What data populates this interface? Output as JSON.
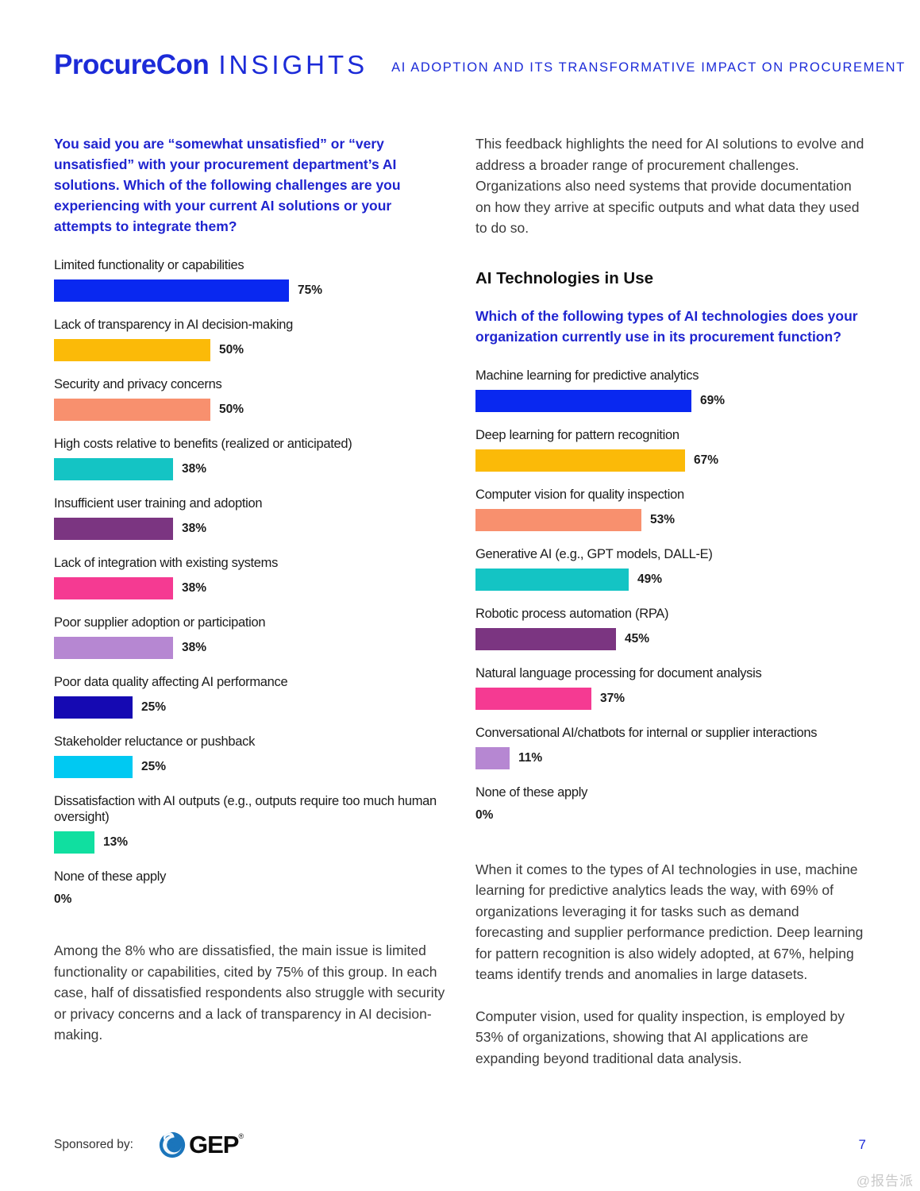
{
  "header": {
    "brand_name": "ProcureCon",
    "brand_insights": "INSIGHTS",
    "subtitle": "AI ADOPTION AND ITS TRANSFORMATIVE IMPACT ON PROCUREMENT"
  },
  "colors": {
    "accent_blue": "#1c2bd8",
    "question_blue": "#1f24cf",
    "body_text": "#3a3a3a",
    "chart_label": "#1c1c1c",
    "watermark_gray": "#c9c9c9"
  },
  "left_column": {
    "closing_paragraph": "Among the 8% who are dissatisfied, the main issue is limited functionality or capabilities, cited by 75% of this group. In each case, half of dissatisfied respondents also struggle with security or privacy concerns and a lack of transparency in AI decision-making."
  },
  "right_column": {
    "intro_paragraph": "This feedback highlights the need for AI solutions to evolve and address a broader range of procurement challenges. Organizations also need systems that provide documentation on how they arrive at specific outputs and what data they used to do so.",
    "section_title": "AI Technologies in Use",
    "closing_paragraph_1": "When it comes to the types of AI technologies in use, machine learning for predictive analytics leads the way, with 69% of organizations leveraging it for tasks such as demand forecasting and supplier performance prediction. Deep learning for pattern recognition is also widely adopted, at 67%, helping teams identify trends and anomalies in large datasets.",
    "closing_paragraph_2": "Computer vision, used for quality inspection, is employed by 53% of organizations, showing that AI applications are expanding beyond traditional data analysis."
  },
  "chart_data": [
    {
      "type": "bar",
      "orientation": "horizontal",
      "title": "You said you are “somewhat unsatisfied” or “very unsatisfied” with your procurement department’s AI solutions. Which of the following challenges are you experiencing with your current AI solutions or your attempts to integrate them?",
      "categories": [
        "Limited functionality or capabilities",
        "Lack of transparency in AI decision-making",
        "Security and privacy concerns",
        "High costs relative to benefits (realized or anticipated)",
        "Insufficient user training and adoption",
        "Lack of integration with existing systems",
        "Poor supplier adoption or participation",
        "Poor data quality affecting AI performance",
        "Stakeholder reluctance or pushback",
        "Dissatisfaction with AI outputs (e.g., outputs require too much human oversight)",
        "None of these apply"
      ],
      "values": [
        75,
        50,
        50,
        38,
        38,
        38,
        38,
        25,
        25,
        13,
        0
      ],
      "value_suffix": "%",
      "bar_colors": [
        "#0928f0",
        "#fbba08",
        "#f8906e",
        "#14c4c4",
        "#7b3581",
        "#f53a92",
        "#b687d2",
        "#1509b2",
        "#00c9f2",
        "#10dfa0",
        null
      ],
      "xlim": [
        0,
        100
      ],
      "grid": false,
      "legend": "none"
    },
    {
      "type": "bar",
      "orientation": "horizontal",
      "title": "Which of the following types of AI technologies does your organization currently use in its procurement function?",
      "categories": [
        "Machine learning for predictive analytics",
        "Deep learning for pattern recognition",
        "Computer vision for quality inspection",
        "Generative AI (e.g., GPT models, DALL-E)",
        "Robotic process automation (RPA)",
        "Natural language processing for document analysis",
        "Conversational AI/chatbots for internal or supplier interactions",
        "None of these apply"
      ],
      "values": [
        69,
        67,
        53,
        49,
        45,
        37,
        11,
        0
      ],
      "value_suffix": "%",
      "bar_colors": [
        "#0928f0",
        "#fbba08",
        "#f8906e",
        "#14c4c4",
        "#7b3581",
        "#f53a92",
        "#b687d2",
        null
      ],
      "xlim": [
        0,
        100
      ],
      "grid": false,
      "legend": "none"
    }
  ],
  "footer": {
    "sponsored_label": "Sponsored by:",
    "logo_name": "GEP",
    "logo_reg_mark": "®",
    "page_number": "7",
    "watermark": "@报告派"
  }
}
